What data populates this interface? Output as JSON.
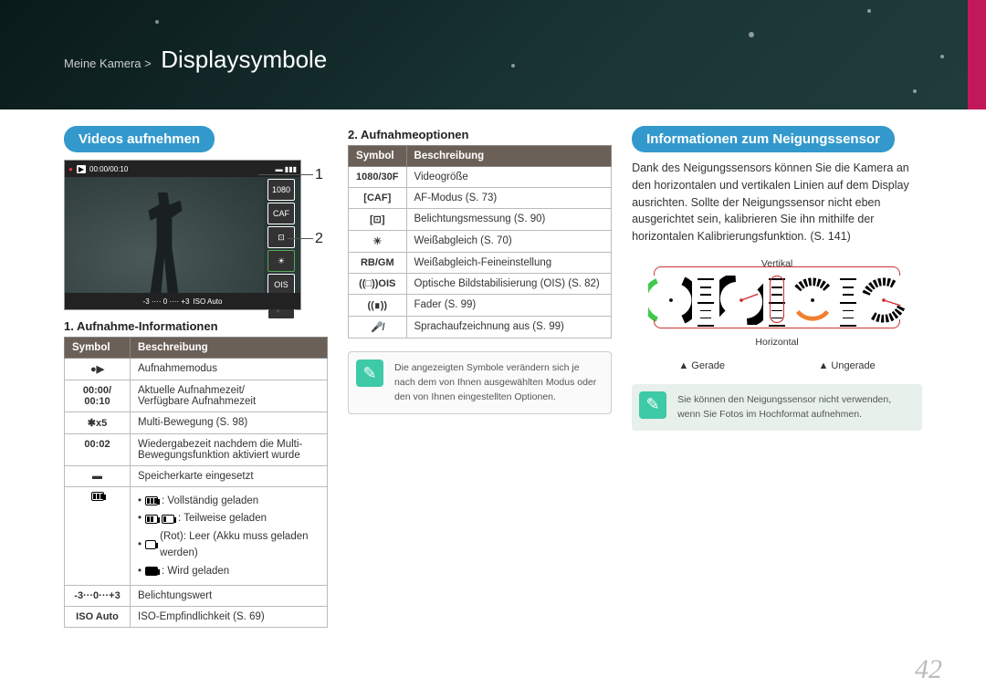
{
  "breadcrumb": "Meine Kamera >",
  "page_title": "Displaysymbole",
  "page_number": "42",
  "col1": {
    "pill": "Videos aufnehmen",
    "section1_title": "1. Aufnahme-Informationen",
    "callout_1": "1",
    "callout_2": "2",
    "table": {
      "head_symbol": "Symbol",
      "head_desc": "Beschreibung",
      "rows": [
        {
          "sym": "●▶",
          "desc": "Aufnahmemodus"
        },
        {
          "sym": "00:00/ 00:10",
          "desc": "Aktuelle Aufnahmezeit/\nVerfügbare Aufnahmezeit"
        },
        {
          "sym": "✱x5",
          "desc": "Multi-Bewegung (S. 98)"
        },
        {
          "sym": "00:02",
          "desc": "Wiedergabezeit nachdem die Multi-Bewegungsfunktion aktiviert wurde"
        },
        {
          "sym": "▬",
          "desc": "Speicherkarte eingesetzt"
        },
        {
          "sym": "batt",
          "desc": "battery-list"
        },
        {
          "sym": "-3···0···+3",
          "desc": "Belichtungswert"
        },
        {
          "sym": "ISO Auto",
          "desc": "ISO-Empfindlichkeit (S. 69)"
        }
      ],
      "battery_items": [
        ": Vollständig geladen",
        ": Teilweise geladen",
        "(Rot): Leer (Akku muss geladen werden)",
        ": Wird geladen"
      ]
    }
  },
  "col2": {
    "section_title": "2. Aufnahmeoptionen",
    "table": {
      "head_symbol": "Symbol",
      "head_desc": "Beschreibung",
      "rows": [
        {
          "sym": "1080/30F",
          "desc": "Videogröße"
        },
        {
          "sym": "[CAF]",
          "desc": "AF-Modus (S. 73)"
        },
        {
          "sym": "[⊡]",
          "desc": "Belichtungsmessung (S. 90)"
        },
        {
          "sym": "☀",
          "desc": "Weißabgleich (S. 70)"
        },
        {
          "sym": "RB/GM",
          "desc": "Weißabgleich-Feineinstellung"
        },
        {
          "sym": "((□))OIS",
          "desc": "Optische Bildstabilisierung (OIS) (S. 82)"
        },
        {
          "sym": "((∎))",
          "desc": "Fader (S. 99)"
        },
        {
          "sym": "🎤̸",
          "desc": "Sprachaufzeichnung aus (S. 99)"
        }
      ]
    },
    "note": "Die angezeigten Symbole verändern sich je nach dem von Ihnen ausgewählten Modus oder den von Ihnen eingestellten Optionen."
  },
  "col3": {
    "pill": "Informationen zum Neigungssensor",
    "desc": "Dank des Neigungssensors können Sie die Kamera an den horizontalen und vertikalen Linien auf dem Display ausrichten. Sollte der Neigungssensor nicht eben ausgerichtet sein, kalibrieren Sie ihn mithilfe der horizontalen Kalibrierungsfunktion. (S. 141)",
    "label_vertical": "Vertikal",
    "label_horizontal": "Horizontal",
    "legend_straight": "Gerade",
    "legend_uneven": "Ungerade",
    "note": "Sie können den Neigungssensor nicht verwenden, wenn Sie Fotos im Hochformat aufnehmen."
  },
  "screenshot": {
    "time_elapsed": "00:00/00:10",
    "multi_time": "00:02",
    "iso": "ISO Auto"
  },
  "colors": {
    "accent": "#3399cc",
    "stripe": "#c2185b",
    "tilt_green": "#3ec94a",
    "tilt_orange": "#f08030",
    "note_bg": "#3ec9a7",
    "table_header": "#6b6057"
  }
}
